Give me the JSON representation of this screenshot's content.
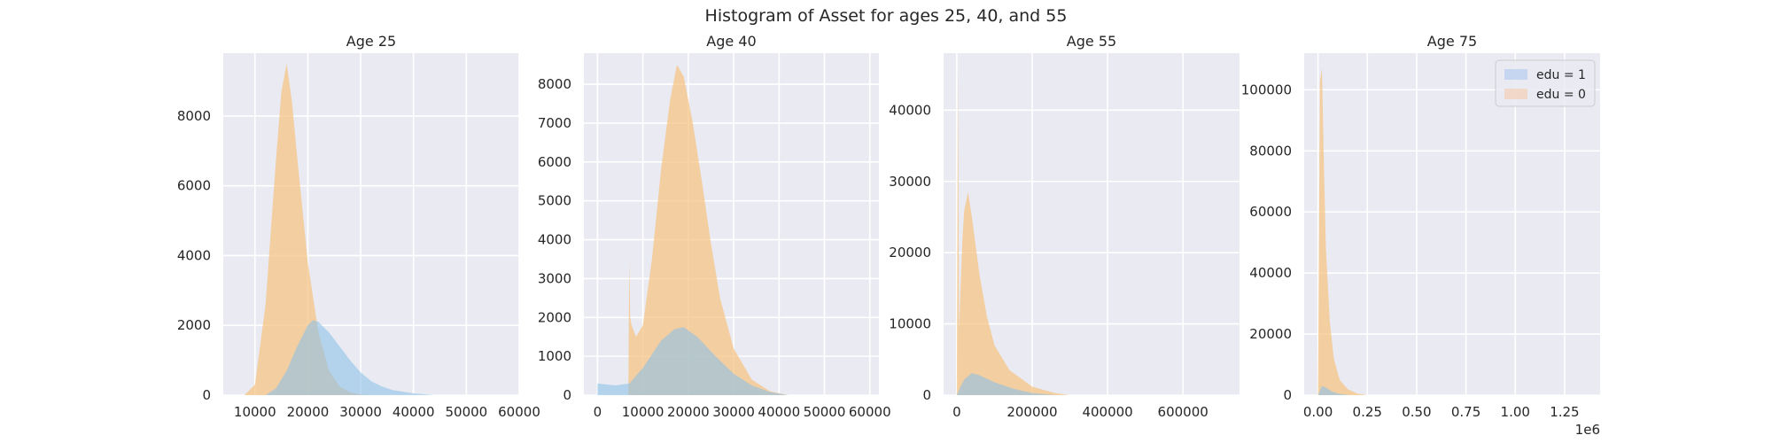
{
  "figure": {
    "title": "Histogram of Asset for ages 25, 40, and 55"
  },
  "legend": {
    "placement": "top-right",
    "entries": [
      {
        "label": "edu = 1",
        "color": "#a9c4ee"
      },
      {
        "label": "edu = 0",
        "color": "#f6c6a4"
      }
    ]
  },
  "colors": {
    "panel_bg": "#eaeaf2",
    "grid": "#ffffff",
    "edu1_fill": "#8ec2e6",
    "edu0_fill": "#f5c27f",
    "overlap_fill": "#c2bf93"
  },
  "chart_data": [
    {
      "type": "area",
      "title": "Age 25",
      "xlim": [
        4000,
        60000
      ],
      "ylim": [
        0,
        9800
      ],
      "xticks": [
        10000,
        20000,
        30000,
        40000,
        50000,
        60000
      ],
      "xtick_labels": [
        "10000",
        "20000",
        "30000",
        "40000",
        "50000",
        "60000"
      ],
      "yticks": [
        0,
        2000,
        4000,
        6000,
        8000
      ],
      "ytick_labels": [
        "0",
        "2000",
        "4000",
        "6000",
        "8000"
      ],
      "offset_label": "",
      "series": [
        {
          "name": "edu = 0",
          "x": [
            8000,
            10000,
            12000,
            14000,
            15000,
            16000,
            17000,
            18000,
            20000,
            22000,
            24000,
            26000,
            28000,
            30000,
            32000
          ],
          "values": [
            0,
            300,
            2600,
            6800,
            8700,
            9500,
            8400,
            6800,
            3800,
            1800,
            700,
            250,
            80,
            20,
            0
          ]
        },
        {
          "name": "edu = 1",
          "x": [
            12000,
            14000,
            16000,
            18000,
            20000,
            21000,
            22000,
            24000,
            26000,
            28000,
            30000,
            32000,
            34000,
            36000,
            40000,
            44000
          ],
          "values": [
            0,
            200,
            700,
            1400,
            2000,
            2150,
            2100,
            1800,
            1400,
            1000,
            650,
            400,
            250,
            150,
            50,
            0
          ]
        }
      ]
    },
    {
      "type": "area",
      "title": "Age 40",
      "xlim": [
        -3000,
        62000
      ],
      "ylim": [
        0,
        8800
      ],
      "xticks": [
        0,
        10000,
        20000,
        30000,
        40000,
        50000,
        60000
      ],
      "xtick_labels": [
        "0",
        "10000",
        "20000",
        "30000",
        "40000",
        "50000",
        "60000"
      ],
      "yticks": [
        0,
        1000,
        2000,
        3000,
        4000,
        5000,
        6000,
        7000,
        8000
      ],
      "ytick_labels": [
        "0",
        "1000",
        "2000",
        "3000",
        "4000",
        "5000",
        "6000",
        "7000",
        "8000"
      ],
      "offset_label": "",
      "series": [
        {
          "name": "edu = 0",
          "x": [
            6800,
            7000,
            7200,
            7500,
            8500,
            10000,
            12000,
            14000,
            16000,
            17500,
            19000,
            21000,
            23000,
            25000,
            27000,
            30000,
            34000,
            38000,
            42000
          ],
          "values": [
            0,
            3500,
            2000,
            1800,
            1500,
            1800,
            3500,
            5800,
            7600,
            8500,
            8200,
            7000,
            5500,
            3900,
            2500,
            1200,
            400,
            100,
            0
          ]
        },
        {
          "name": "edu = 1",
          "x": [
            0,
            4000,
            7000,
            10000,
            14000,
            17000,
            19000,
            22000,
            26000,
            30000,
            34000,
            38000,
            42000
          ],
          "values": [
            300,
            250,
            300,
            700,
            1400,
            1700,
            1750,
            1500,
            1000,
            550,
            250,
            80,
            0
          ]
        }
      ]
    },
    {
      "type": "area",
      "title": "Age 55",
      "xlim": [
        -35000,
        750000
      ],
      "ylim": [
        0,
        48000
      ],
      "xticks": [
        0,
        200000,
        400000,
        600000
      ],
      "xtick_labels": [
        "0",
        "200000",
        "400000",
        "600000"
      ],
      "yticks": [
        0,
        10000,
        20000,
        30000,
        40000
      ],
      "ytick_labels": [
        "0",
        "10000",
        "20000",
        "30000",
        "40000"
      ],
      "offset_label": "",
      "series": [
        {
          "name": "edu = 0",
          "x": [
            0,
            3000,
            6000,
            10000,
            15000,
            20000,
            30000,
            40000,
            60000,
            80000,
            100000,
            140000,
            200000,
            260000,
            300000
          ],
          "values": [
            0,
            46000,
            9000,
            15000,
            22000,
            26000,
            28500,
            25000,
            17000,
            11000,
            7000,
            3500,
            1200,
            300,
            0
          ]
        },
        {
          "name": "edu = 1",
          "x": [
            0,
            10000,
            20000,
            40000,
            60000,
            100000,
            150000,
            200000,
            260000
          ],
          "values": [
            0,
            1200,
            2200,
            3100,
            2800,
            1800,
            900,
            300,
            0
          ]
        }
      ]
    },
    {
      "type": "area",
      "title": "Age 75",
      "xlim": [
        -70000,
        1430000
      ],
      "ylim": [
        0,
        112000
      ],
      "xticks": [
        0,
        250000,
        500000,
        750000,
        1000000,
        1250000
      ],
      "xtick_labels": [
        "0.00",
        "0.25",
        "0.50",
        "0.75",
        "1.00",
        "1.25"
      ],
      "yticks": [
        0,
        20000,
        40000,
        60000,
        80000,
        100000
      ],
      "ytick_labels": [
        "0",
        "20000",
        "40000",
        "60000",
        "80000",
        "100000"
      ],
      "offset_label": "1e6",
      "series": [
        {
          "name": "edu = 0",
          "x": [
            0,
            10000,
            20000,
            30000,
            40000,
            60000,
            80000,
            110000,
            150000,
            200000,
            250000
          ],
          "values": [
            0,
            103000,
            107000,
            75000,
            48000,
            24000,
            12000,
            5000,
            2000,
            500,
            0
          ]
        },
        {
          "name": "edu = 1",
          "x": [
            0,
            20000,
            40000,
            70000,
            110000,
            160000
          ],
          "values": [
            0,
            3000,
            2500,
            1200,
            400,
            0
          ]
        }
      ]
    }
  ]
}
